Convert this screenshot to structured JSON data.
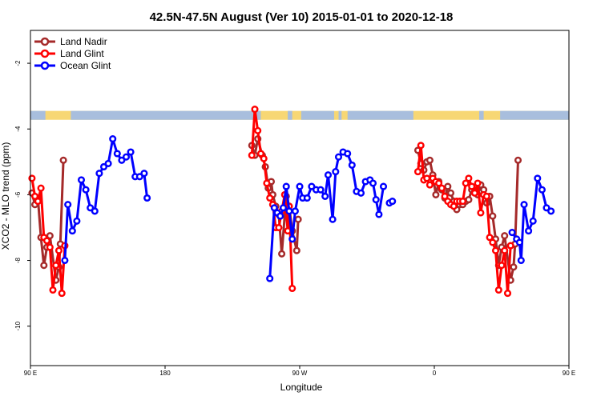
{
  "chart_data": {
    "type": "line",
    "title": "42.5N-47.5N August (Ver 10)   2015-01-01 to 2020-12-18",
    "xlabel": "Longitude",
    "ylabel": "XCO2 - MLO trend (ppm)",
    "xlim": [
      90,
      450
    ],
    "ylim": [
      -11.2,
      -1.0
    ],
    "x_ticks": [
      {
        "value": 90,
        "label": "90 E"
      },
      {
        "value": 180,
        "label": "180"
      },
      {
        "value": 270,
        "label": "90 W"
      },
      {
        "value": 360,
        "label": "0"
      },
      {
        "value": 450,
        "label": "90 E"
      },
      {
        "value": 540,
        "label": "180"
      }
    ],
    "y_ticks": [
      {
        "value": -2,
        "label": "-2"
      },
      {
        "value": -4,
        "label": "-4"
      },
      {
        "value": -6,
        "label": "-6"
      },
      {
        "value": -8,
        "label": "-8"
      },
      {
        "value": -10,
        "label": "-10"
      }
    ],
    "legend": {
      "position": "top-left"
    },
    "land_strip": {
      "land_color": "#f7d774",
      "ocean_color": "#a8bedd"
    },
    "series": [
      {
        "name": "Land Nadir",
        "color": "#a52a2a",
        "segments": [
          [
            [
              91,
              -5.95
            ],
            [
              93,
              -6.3
            ],
            [
              95,
              -6.1
            ],
            [
              97,
              -7.3
            ],
            [
              99,
              -8.15
            ],
            [
              101,
              -7.6
            ],
            [
              103,
              -7.25
            ],
            [
              107,
              -8.6
            ],
            [
              109,
              -8.2
            ],
            [
              110,
              -7.5
            ],
            [
              112,
              -4.95
            ]
          ],
          [
            [
              238,
              -4.5
            ],
            [
              240,
              -4.8
            ],
            [
              242,
              -4.3
            ],
            [
              245,
              -4.8
            ],
            [
              247,
              -5.15
            ],
            [
              249,
              -5.8
            ],
            [
              251,
              -5.6
            ],
            [
              252,
              -6.0
            ],
            [
              254,
              -6.35
            ],
            [
              256,
              -6.6
            ],
            [
              258,
              -7.8
            ],
            [
              261,
              -6.05
            ],
            [
              263,
              -6.35
            ],
            [
              265,
              -7.1
            ],
            [
              268,
              -7.7
            ],
            [
              269,
              -6.75
            ]
          ],
          [
            [
              349,
              -4.65
            ],
            [
              351,
              -5.05
            ],
            [
              353,
              -5.25
            ],
            [
              355,
              -5.0
            ],
            [
              357,
              -4.95
            ],
            [
              359,
              -5.4
            ],
            [
              361,
              -6.0
            ],
            [
              363,
              -5.6
            ],
            [
              365,
              -5.85
            ],
            [
              367,
              -6.1
            ],
            [
              369,
              -5.75
            ],
            [
              371,
              -5.95
            ],
            [
              373,
              -6.2
            ],
            [
              375,
              -6.45
            ],
            [
              377,
              -6.3
            ],
            [
              379,
              -6.3
            ],
            [
              381,
              -6.2
            ],
            [
              383,
              -6.15
            ],
            [
              385,
              -5.85
            ],
            [
              387,
              -5.9
            ],
            [
              389,
              -6.0
            ],
            [
              391,
              -5.7
            ],
            [
              393,
              -5.85
            ],
            [
              395,
              -6.25
            ],
            [
              397,
              -6.05
            ],
            [
              399,
              -6.65
            ],
            [
              401,
              -7.35
            ],
            [
              403,
              -8.15
            ],
            [
              405,
              -7.6
            ],
            [
              407,
              -7.25
            ],
            [
              411,
              -8.6
            ],
            [
              413,
              -8.2
            ],
            [
              414,
              -7.5
            ],
            [
              416,
              -4.95
            ]
          ]
        ]
      },
      {
        "name": "Land Glint",
        "color": "#ff0000",
        "segments": [
          [
            [
              91,
              -5.5
            ],
            [
              93,
              -6.05
            ],
            [
              95,
              -6.2
            ],
            [
              97,
              -5.8
            ],
            [
              99,
              -7.3
            ],
            [
              101,
              -7.4
            ],
            [
              103,
              -7.6
            ],
            [
              105,
              -8.9
            ],
            [
              107,
              -8.15
            ],
            [
              109,
              -7.7
            ],
            [
              111,
              -9.0
            ],
            [
              113,
              -7.55
            ]
          ],
          [
            [
              238,
              -4.8
            ],
            [
              240,
              -3.4
            ],
            [
              242,
              -4.05
            ],
            [
              244,
              -4.75
            ],
            [
              246,
              -4.9
            ],
            [
              248,
              -5.65
            ],
            [
              250,
              -6.1
            ],
            [
              252,
              -6.3
            ],
            [
              254,
              -7.0
            ],
            [
              256,
              -7.0
            ],
            [
              258,
              -6.5
            ],
            [
              260,
              -6.0
            ],
            [
              262,
              -7.1
            ],
            [
              263,
              -6.35
            ],
            [
              265,
              -8.85
            ]
          ],
          [
            [
              349,
              -5.3
            ],
            [
              351,
              -4.5
            ],
            [
              353,
              -5.55
            ],
            [
              355,
              -5.5
            ],
            [
              357,
              -5.7
            ],
            [
              359,
              -5.5
            ],
            [
              361,
              -5.6
            ],
            [
              363,
              -5.65
            ],
            [
              365,
              -5.8
            ],
            [
              367,
              -6.05
            ],
            [
              369,
              -6.2
            ],
            [
              371,
              -6.3
            ],
            [
              373,
              -6.35
            ],
            [
              375,
              -6.2
            ],
            [
              377,
              -6.2
            ],
            [
              379,
              -6.2
            ],
            [
              381,
              -5.65
            ],
            [
              383,
              -5.5
            ],
            [
              385,
              -5.75
            ],
            [
              387,
              -5.95
            ],
            [
              389,
              -5.65
            ],
            [
              391,
              -6.55
            ],
            [
              393,
              -6.0
            ],
            [
              395,
              -6.05
            ],
            [
              397,
              -7.3
            ],
            [
              399,
              -7.45
            ],
            [
              401,
              -7.7
            ],
            [
              403,
              -8.9
            ],
            [
              405,
              -8.15
            ],
            [
              407,
              -7.7
            ],
            [
              409,
              -9.0
            ],
            [
              411,
              -7.55
            ]
          ]
        ]
      },
      {
        "name": "Ocean Glint",
        "color": "#0000ff",
        "segments": [
          [
            [
              113,
              -8.0
            ],
            [
              115,
              -6.3
            ],
            [
              118,
              -7.1
            ],
            [
              121,
              -6.8
            ],
            [
              124,
              -5.55
            ],
            [
              127,
              -5.85
            ],
            [
              130,
              -6.4
            ],
            [
              133,
              -6.5
            ],
            [
              136,
              -5.35
            ],
            [
              139,
              -5.15
            ],
            [
              142,
              -5.05
            ],
            [
              145,
              -4.3
            ],
            [
              148,
              -4.75
            ],
            [
              151,
              -4.95
            ],
            [
              154,
              -4.85
            ],
            [
              157,
              -4.7
            ],
            [
              160,
              -5.45
            ],
            [
              163,
              -5.45
            ],
            [
              166,
              -5.35
            ],
            [
              168,
              -6.1
            ]
          ],
          [
            [
              250,
              -8.55
            ],
            [
              253,
              -6.4
            ],
            [
              255,
              -6.55
            ],
            [
              257,
              -6.65
            ],
            [
              259,
              -6.4
            ],
            [
              261,
              -5.75
            ],
            [
              263,
              -6.5
            ],
            [
              265,
              -7.35
            ],
            [
              267,
              -6.5
            ],
            [
              270,
              -5.75
            ],
            [
              272,
              -6.1
            ],
            [
              275,
              -6.1
            ],
            [
              278,
              -5.75
            ],
            [
              281,
              -5.85
            ],
            [
              284,
              -5.85
            ],
            [
              287,
              -6.05
            ],
            [
              289,
              -5.4
            ],
            [
              292,
              -6.75
            ],
            [
              294,
              -5.3
            ],
            [
              296,
              -4.85
            ],
            [
              299,
              -4.7
            ],
            [
              302,
              -4.75
            ],
            [
              305,
              -5.1
            ],
            [
              308,
              -5.9
            ],
            [
              311,
              -5.95
            ],
            [
              314,
              -5.6
            ],
            [
              317,
              -5.55
            ],
            [
              319,
              -5.65
            ],
            [
              321,
              -6.15
            ],
            [
              323,
              -6.6
            ],
            [
              326,
              -5.75
            ]
          ],
          [
            [
              330,
              -6.25
            ],
            [
              332,
              -6.2
            ]
          ],
          [
            [
              412,
              -7.15
            ],
            [
              415,
              -7.35
            ],
            [
              417,
              -7.45
            ],
            [
              418,
              -8.0
            ],
            [
              420,
              -6.3
            ],
            [
              423,
              -7.1
            ],
            [
              426,
              -6.8
            ],
            [
              429,
              -5.5
            ],
            [
              432,
              -5.85
            ],
            [
              435,
              -6.4
            ],
            [
              438,
              -6.5
            ]
          ]
        ]
      }
    ]
  }
}
